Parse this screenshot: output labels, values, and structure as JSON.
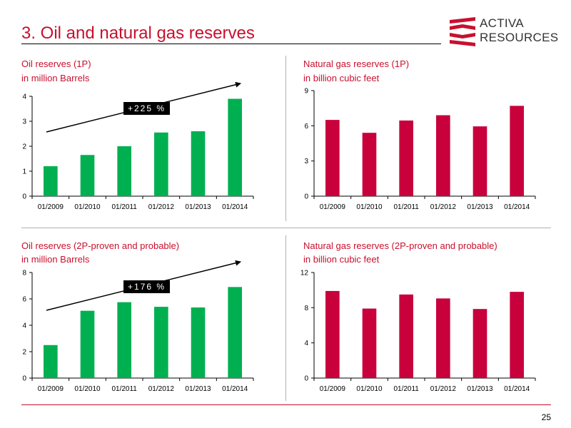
{
  "slide": {
    "title": "3. Oil and natural gas reserves",
    "page_number": "25"
  },
  "logo": {
    "line1": "ACTIVA",
    "line2": "RESOURCES",
    "brand_color": "#c8102e"
  },
  "colors": {
    "oil_bar": "#00b050",
    "gas_bar": "#c8003c",
    "accent": "#c8102e"
  },
  "panels": {
    "oil_1p": {
      "title": "Oil reserves (1P)",
      "subtitle": "in million Barrels",
      "callout": "+225 %"
    },
    "gas_1p": {
      "title": "Natural gas reserves (1P)",
      "subtitle": "in billion cubic feet"
    },
    "oil_2p": {
      "title": "Oil reserves (2P-proven and probable)",
      "subtitle": "in million Barrels",
      "callout": "+176 %"
    },
    "gas_2p": {
      "title": "Natural gas reserves (2P-proven and probable)",
      "subtitle": "in billion cubic feet"
    }
  },
  "chart_data": [
    {
      "type": "bar",
      "id": "oil_1p",
      "title": "Oil reserves (1P)",
      "ylabel": "in million Barrels",
      "categories": [
        "01/2009",
        "01/2010",
        "01/2011",
        "01/2012",
        "01/2013",
        "01/2014"
      ],
      "values": [
        1.2,
        1.65,
        2.0,
        2.55,
        2.6,
        3.9
      ],
      "ylim": [
        0,
        4
      ],
      "yticks": [
        0,
        1,
        2,
        3,
        4
      ],
      "color": "#00b050",
      "annotation": "+225 %",
      "trend_arrow": true
    },
    {
      "type": "bar",
      "id": "gas_1p",
      "title": "Natural gas reserves (1P)",
      "ylabel": "in billion cubic feet",
      "categories": [
        "01/2009",
        "01/2010",
        "01/2011",
        "01/2012",
        "01/2013",
        "01/2014"
      ],
      "values": [
        6.5,
        5.4,
        6.45,
        6.9,
        5.95,
        7.7
      ],
      "ylim": [
        0,
        9
      ],
      "yticks": [
        0,
        3,
        6,
        9
      ],
      "color": "#c8003c"
    },
    {
      "type": "bar",
      "id": "oil_2p",
      "title": "Oil reserves (2P-proven and probable)",
      "ylabel": "in million Barrels",
      "categories": [
        "01/2009",
        "01/2010",
        "01/2011",
        "01/2012",
        "01/2013",
        "01/2014"
      ],
      "values": [
        2.5,
        5.1,
        5.75,
        5.4,
        5.35,
        6.9
      ],
      "ylim": [
        0,
        8
      ],
      "yticks": [
        0,
        2,
        4,
        6,
        8
      ],
      "color": "#00b050",
      "annotation": "+176 %",
      "trend_arrow": true
    },
    {
      "type": "bar",
      "id": "gas_2p",
      "title": "Natural gas reserves (2P-proven and probable)",
      "ylabel": "in billion cubic feet",
      "categories": [
        "01/2009",
        "01/2010",
        "01/2011",
        "01/2012",
        "01/2013",
        "01/2014"
      ],
      "values": [
        9.9,
        7.9,
        9.5,
        9.05,
        7.85,
        9.8
      ],
      "ylim": [
        0,
        12
      ],
      "yticks": [
        0,
        4,
        8,
        12
      ],
      "color": "#c8003c"
    }
  ]
}
